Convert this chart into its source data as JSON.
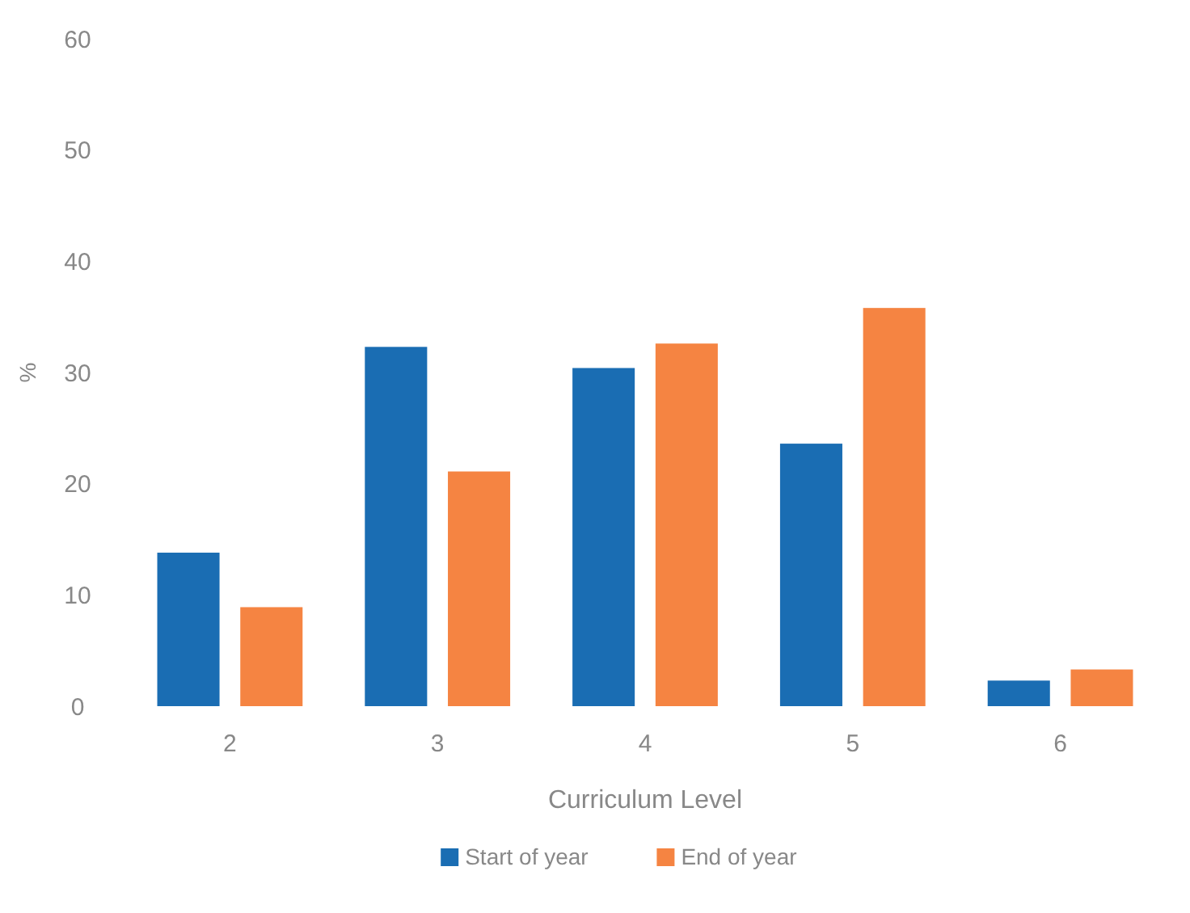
{
  "chart_data": {
    "type": "bar",
    "categories": [
      "2",
      "3",
      "4",
      "5",
      "6"
    ],
    "xlabel": "Curriculum Level",
    "ylabel": "%",
    "series": [
      {
        "name": "Start of year",
        "color": "#1a6db3",
        "values": [
          13.8,
          32.3,
          30.4,
          23.6,
          2.3
        ]
      },
      {
        "name": "End of year",
        "color": "#f58442",
        "values": [
          8.9,
          21.1,
          32.6,
          35.8,
          3.3
        ]
      }
    ],
    "ylim": [
      0,
      60
    ],
    "yticks": [
      0,
      10,
      20,
      30,
      40,
      50,
      60
    ],
    "grid": false,
    "legend": "bottom"
  }
}
